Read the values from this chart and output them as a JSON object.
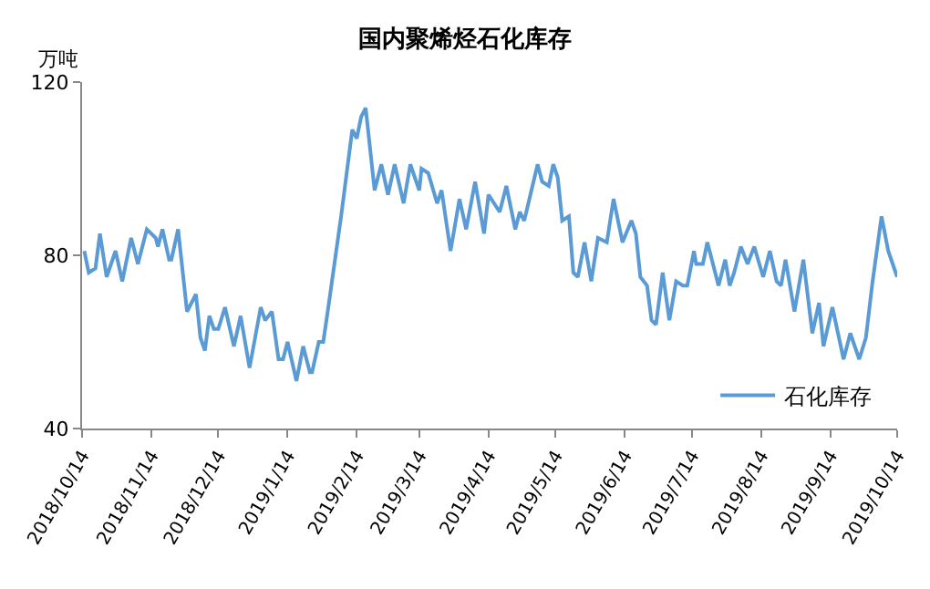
{
  "chart_data": {
    "type": "line",
    "title": "国内聚烯烃石化库存",
    "ylabel": "万吨",
    "x": [
      "2018-10-15",
      "2018-10-17",
      "2018-10-20",
      "2018-10-22",
      "2018-10-25",
      "2018-10-29",
      "2018-11-01",
      "2018-11-05",
      "2018-11-08",
      "2018-11-12",
      "2018-11-16",
      "2018-11-17",
      "2018-11-19",
      "2018-11-22",
      "2018-11-23",
      "2018-11-26",
      "2018-11-30",
      "2018-12-04",
      "2018-12-06",
      "2018-12-08",
      "2018-12-10",
      "2018-12-12",
      "2018-12-14",
      "2018-12-17",
      "2018-12-21",
      "2018-12-24",
      "2018-12-28",
      "2019-01-02",
      "2019-01-04",
      "2019-01-07",
      "2019-01-10",
      "2019-01-12",
      "2019-01-14",
      "2019-01-18",
      "2019-01-21",
      "2019-01-24",
      "2019-01-25",
      "2019-01-28",
      "2019-01-30",
      "2019-02-01",
      "2019-02-07",
      "2019-02-11",
      "2019-02-12",
      "2019-02-14",
      "2019-02-16",
      "2019-02-18",
      "2019-02-22",
      "2019-02-25",
      "2019-02-28",
      "2019-03-03",
      "2019-03-07",
      "2019-03-10",
      "2019-03-14",
      "2019-03-15",
      "2019-03-18",
      "2019-03-22",
      "2019-03-24",
      "2019-03-28",
      "2019-04-01",
      "2019-04-04",
      "2019-04-08",
      "2019-04-12",
      "2019-04-14",
      "2019-04-19",
      "2019-04-22",
      "2019-04-26",
      "2019-04-28",
      "2019-04-30",
      "2019-05-06",
      "2019-05-08",
      "2019-05-11",
      "2019-05-13",
      "2019-05-15",
      "2019-05-17",
      "2019-05-20",
      "2019-05-22",
      "2019-05-24",
      "2019-05-27",
      "2019-05-30",
      "2019-06-02",
      "2019-06-06",
      "2019-06-09",
      "2019-06-13",
      "2019-06-17",
      "2019-06-19",
      "2019-06-21",
      "2019-06-24",
      "2019-06-26",
      "2019-06-28",
      "2019-07-01",
      "2019-07-04",
      "2019-07-07",
      "2019-07-10",
      "2019-07-12",
      "2019-07-15",
      "2019-07-16",
      "2019-07-19",
      "2019-07-21",
      "2019-07-26",
      "2019-07-29",
      "2019-07-31",
      "2019-08-02",
      "2019-08-05",
      "2019-08-08",
      "2019-08-11",
      "2019-08-15",
      "2019-08-18",
      "2019-08-21",
      "2019-08-23",
      "2019-08-25",
      "2019-08-29",
      "2019-09-02",
      "2019-09-06",
      "2019-09-09",
      "2019-09-11",
      "2019-09-15",
      "2019-09-20",
      "2019-09-23",
      "2019-09-27",
      "2019-09-30",
      "2019-10-03",
      "2019-10-07",
      "2019-10-10",
      "2019-10-14"
    ],
    "series": [
      {
        "name": "石化库存",
        "color": "#5b9bd5",
        "values": [
          81,
          76,
          77,
          85,
          75,
          81,
          74,
          84,
          78,
          86,
          84,
          82,
          86,
          79,
          79,
          86,
          67,
          71,
          61,
          58,
          66,
          63,
          63,
          68,
          59,
          66,
          54,
          68,
          65,
          67,
          56,
          56,
          60,
          51,
          59,
          53,
          53,
          60,
          60,
          67,
          89,
          105,
          109,
          107,
          112,
          114,
          95,
          101,
          94,
          101,
          92,
          101,
          95,
          100,
          99,
          92,
          95,
          81,
          93,
          86,
          97,
          85,
          94,
          90,
          96,
          86,
          90,
          88,
          101,
          97,
          96,
          101,
          98,
          88,
          89,
          76,
          75,
          83,
          74,
          84,
          83,
          93,
          83,
          88,
          85,
          75,
          73,
          65,
          64,
          76,
          65,
          74,
          73,
          73,
          81,
          78,
          78,
          83,
          73,
          79,
          73,
          76,
          82,
          78,
          82,
          75,
          81,
          74,
          73,
          79,
          67,
          79,
          62,
          69,
          59,
          68,
          56,
          62,
          56,
          61,
          74,
          89,
          81,
          75
        ]
      }
    ],
    "xlim": [
      "2018-10-14",
      "2019-10-14"
    ],
    "xticks": [
      {
        "value": "2018-10-14",
        "label": "2018/10/14"
      },
      {
        "value": "2018-11-14",
        "label": "2018/11/14"
      },
      {
        "value": "2018-12-14",
        "label": "2018/12/14"
      },
      {
        "value": "2019-01-14",
        "label": "2019/1/14"
      },
      {
        "value": "2019-02-14",
        "label": "2019/2/14"
      },
      {
        "value": "2019-03-14",
        "label": "2019/3/14"
      },
      {
        "value": "2019-04-14",
        "label": "2019/4/14"
      },
      {
        "value": "2019-05-14",
        "label": "2019/5/14"
      },
      {
        "value": "2019-06-14",
        "label": "2019/6/14"
      },
      {
        "value": "2019-07-14",
        "label": "2019/7/14"
      },
      {
        "value": "2019-08-14",
        "label": "2019/8/14"
      },
      {
        "value": "2019-09-14",
        "label": "2019/9/14"
      },
      {
        "value": "2019-10-14",
        "label": "2019/10/14"
      }
    ],
    "ylim": [
      40,
      120
    ],
    "yticks": [
      40,
      80,
      120
    ],
    "legend": "bottom right",
    "marker": "none",
    "line_style": "solid"
  }
}
